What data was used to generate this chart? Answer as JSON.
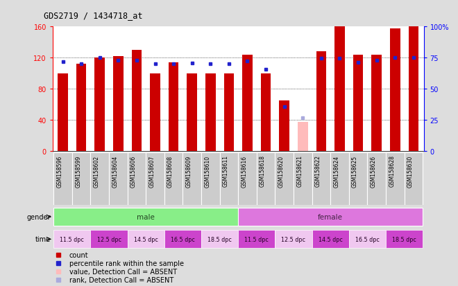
{
  "title": "GDS2719 / 1434718_at",
  "samples": [
    "GSM158596",
    "GSM158599",
    "GSM158602",
    "GSM158604",
    "GSM158606",
    "GSM158607",
    "GSM158608",
    "GSM158609",
    "GSM158610",
    "GSM158611",
    "GSM158616",
    "GSM158618",
    "GSM158620",
    "GSM158621",
    "GSM158622",
    "GSM158624",
    "GSM158625",
    "GSM158626",
    "GSM158628",
    "GSM158630"
  ],
  "red_bars": [
    100,
    112,
    120,
    122,
    130,
    100,
    114,
    100,
    100,
    100,
    124,
    100,
    65,
    38,
    128,
    160,
    124,
    124,
    158,
    160
  ],
  "blue_squares": [
    115,
    112,
    120,
    117,
    117,
    112,
    112,
    113,
    112,
    112,
    116,
    105,
    57,
    null,
    119,
    119,
    114,
    117,
    120,
    120
  ],
  "absent_bar": [
    null,
    null,
    null,
    null,
    null,
    null,
    null,
    null,
    null,
    null,
    null,
    null,
    null,
    38,
    null,
    null,
    null,
    null,
    null,
    null
  ],
  "absent_rank": [
    null,
    null,
    null,
    null,
    null,
    null,
    null,
    null,
    null,
    null,
    null,
    null,
    null,
    43,
    null,
    null,
    null,
    null,
    null,
    null
  ],
  "ylim_left": [
    0,
    160
  ],
  "ylim_right": [
    0,
    100
  ],
  "yticks_left": [
    0,
    40,
    80,
    120,
    160
  ],
  "yticks_right": [
    0,
    25,
    50,
    75,
    100
  ],
  "ytick_labels_right": [
    "0",
    "25",
    "50",
    "75",
    "100%"
  ],
  "bar_color": "#cc0000",
  "blue_color": "#2222cc",
  "absent_bar_color": "#ffbbbb",
  "absent_rank_color": "#aaaadd",
  "gender_male_color": "#88ee88",
  "gender_female_color": "#dd77dd",
  "time_c1": "#f0c8f0",
  "time_c2": "#cc44cc",
  "bg_color": "#cccccc",
  "plot_bg": "#ffffff",
  "fig_bg": "#dddddd",
  "time_group_map": [
    [
      "11.5 dpc",
      0,
      1
    ],
    [
      "12.5 dpc",
      2,
      3
    ],
    [
      "14.5 dpc",
      4,
      5
    ],
    [
      "16.5 dpc",
      6,
      7
    ],
    [
      "18.5 dpc",
      8,
      9
    ],
    [
      "11.5 dpc",
      10,
      11
    ],
    [
      "12.5 dpc",
      12,
      13
    ],
    [
      "14.5 dpc",
      14,
      15
    ],
    [
      "16.5 dpc",
      16,
      17
    ],
    [
      "18.5 dpc",
      18,
      19
    ]
  ]
}
